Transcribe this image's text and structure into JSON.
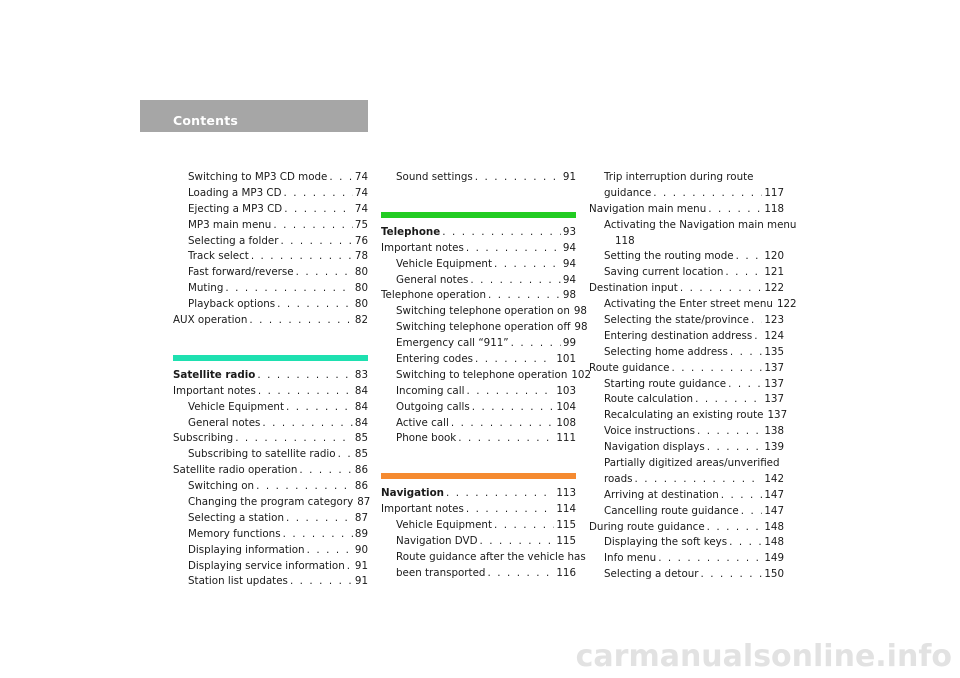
{
  "header": {
    "title": "Contents",
    "bg_color": "#a6a6a6"
  },
  "colors": {
    "satellite_bar": "#1ee0b0",
    "telephone_bar": "#22cc22",
    "navigation_bar": "#f58a30"
  },
  "watermark": "carmanualsonline.info",
  "col1": {
    "a": [
      {
        "t": "Switching to MP3 CD mode",
        "p": "74"
      },
      {
        "t": "Loading a MP3 CD",
        "p": "74"
      },
      {
        "t": "Ejecting a MP3 CD",
        "p": "74"
      },
      {
        "t": "MP3 main menu",
        "p": "75"
      },
      {
        "t": "Selecting a folder",
        "p": "76"
      },
      {
        "t": "Track select",
        "p": "78"
      },
      {
        "t": "Fast forward/reverse",
        "p": "80"
      },
      {
        "t": "Muting",
        "p": "80"
      },
      {
        "t": "Playback options",
        "p": "80"
      }
    ],
    "aux": {
      "t": "AUX operation",
      "p": "82"
    },
    "sat_title": {
      "t": "Satellite radio",
      "p": "83"
    },
    "b": [
      {
        "t": "Important notes",
        "p": "84",
        "sub": false
      },
      {
        "t": "Vehicle Equipment",
        "p": "84",
        "sub": true
      },
      {
        "t": "General notes",
        "p": "84",
        "sub": true
      },
      {
        "t": "Subscribing",
        "p": "85",
        "sub": false
      },
      {
        "t": "Subscribing to satellite radio",
        "p": "85",
        "sub": true
      },
      {
        "t": "Satellite radio operation",
        "p": "86",
        "sub": false
      },
      {
        "t": "Switching on",
        "p": "86",
        "sub": true
      },
      {
        "t": "Changing the program category",
        "p": "87",
        "sub": true
      },
      {
        "t": "Selecting a station",
        "p": "87",
        "sub": true
      },
      {
        "t": "Memory functions",
        "p": "89",
        "sub": true
      },
      {
        "t": "Displaying information",
        "p": "90",
        "sub": true
      },
      {
        "t": "Displaying service information",
        "p": "91",
        "sub": true
      },
      {
        "t": "Station list updates",
        "p": "91",
        "sub": true
      }
    ]
  },
  "col2": {
    "sound": {
      "t": "Sound settings",
      "p": "91"
    },
    "tel_title": {
      "t": "Telephone",
      "p": "93"
    },
    "a": [
      {
        "t": "Important notes",
        "p": "94",
        "sub": false
      },
      {
        "t": "Vehicle Equipment",
        "p": "94",
        "sub": true
      },
      {
        "t": "General notes",
        "p": "94",
        "sub": true
      },
      {
        "t": "Telephone operation",
        "p": "98",
        "sub": false
      },
      {
        "t": "Switching telephone operation on",
        "p": "98",
        "sub": true
      },
      {
        "t": "Switching telephone operation off",
        "p": "98",
        "sub": true
      },
      {
        "t": "Emergency call “911”",
        "p": "99",
        "sub": true
      },
      {
        "t": "Entering codes",
        "p": "101",
        "sub": true
      },
      {
        "t": "Switching to telephone operation",
        "p": "102",
        "sub": true
      },
      {
        "t": "Incoming call",
        "p": "103",
        "sub": true
      },
      {
        "t": "Outgoing calls",
        "p": "104",
        "sub": true
      },
      {
        "t": "Active call",
        "p": "108",
        "sub": true
      },
      {
        "t": "Phone book",
        "p": "111",
        "sub": true
      }
    ],
    "nav_title": {
      "t": "Navigation",
      "p": "113"
    },
    "b": [
      {
        "t": "Important notes",
        "p": "114",
        "sub": false
      },
      {
        "t": "Vehicle Equipment",
        "p": "115",
        "sub": true
      },
      {
        "t": "Navigation DVD",
        "p": "115",
        "sub": true
      }
    ],
    "route_after_1": "Route guidance after the vehicle has",
    "route_after_2": {
      "t": "been transported",
      "p": "116"
    }
  },
  "col3": {
    "trip_1": "Trip interruption during route",
    "trip_2": {
      "t": "guidance",
      "p": "117"
    },
    "nav_main": {
      "t": "Navigation main menu",
      "p": "118"
    },
    "activating_1": "Activating the Navigation main menu",
    "activating_2": "118",
    "a": [
      {
        "t": "Setting the routing mode",
        "p": "120",
        "sub": true
      },
      {
        "t": "Saving current location",
        "p": "121",
        "sub": true
      },
      {
        "t": "Destination input",
        "p": "122",
        "sub": false
      },
      {
        "t": "Activating the Enter street menu",
        "p": "122",
        "sub": true
      },
      {
        "t": "Selecting the state/province",
        "p": "123",
        "sub": true
      },
      {
        "t": "Entering destination address",
        "p": "124",
        "sub": true
      },
      {
        "t": "Selecting home address",
        "p": "135",
        "sub": true
      },
      {
        "t": "Route guidance",
        "p": "137",
        "sub": false
      },
      {
        "t": "Starting route guidance",
        "p": "137",
        "sub": true
      },
      {
        "t": "Route calculation",
        "p": "137",
        "sub": true
      },
      {
        "t": "Recalculating an existing route",
        "p": "137",
        "sub": true
      },
      {
        "t": "Voice instructions",
        "p": "138",
        "sub": true
      },
      {
        "t": "Navigation displays",
        "p": "139",
        "sub": true
      }
    ],
    "partial_1": "Partially digitized areas/unverified",
    "partial_2": {
      "t": "roads",
      "p": "142"
    },
    "b": [
      {
        "t": "Arriving at destination",
        "p": "147",
        "sub": true
      },
      {
        "t": "Cancelling route guidance",
        "p": "147",
        "sub": true
      },
      {
        "t": "During route guidance",
        "p": "148",
        "sub": false
      },
      {
        "t": "Displaying the soft keys",
        "p": "148",
        "sub": true
      },
      {
        "t": "Info menu",
        "p": "149",
        "sub": true
      },
      {
        "t": "Selecting a detour",
        "p": "150",
        "sub": true
      }
    ]
  }
}
